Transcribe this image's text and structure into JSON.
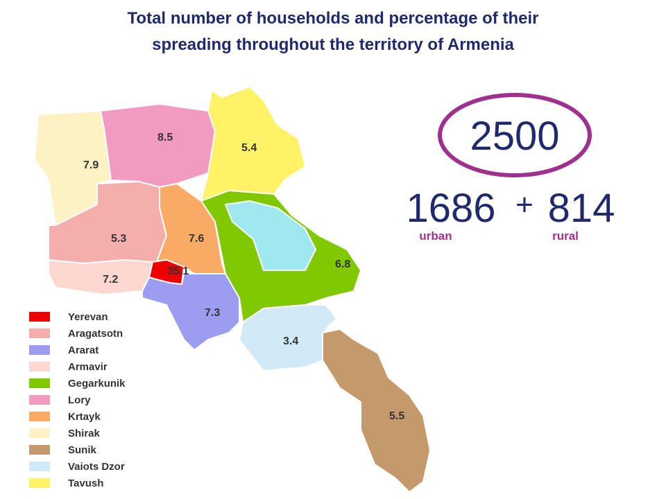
{
  "title": [
    "Total number of households and percentage of their",
    "spreading throughout the territory of Armenia"
  ],
  "regions": [
    {
      "value": 7.9,
      "color": "#fdf2c4"
    },
    {
      "value": 8.5,
      "color": "#f29ac0"
    },
    {
      "value": 5.4,
      "color": "#fff266"
    },
    {
      "value": 5.3,
      "color": "#f4aeac"
    },
    {
      "value": 7.6,
      "color": "#f9aa64"
    },
    {
      "value": 7.2,
      "color": "#fcd8d0"
    },
    {
      "value": 35.1,
      "color": "#ee0000"
    },
    {
      "value": 7.3,
      "color": "#9c9cf0"
    },
    {
      "value": 6.8,
      "color": "#80c800"
    },
    {
      "value": 3.4,
      "color": "#d2eaf8"
    },
    {
      "value": 5.5,
      "color": "#c49a6c"
    }
  ],
  "legend": [
    {
      "name": "Yerevan",
      "color": "#ee0000"
    },
    {
      "name": "Aragatsotn",
      "color": "#f4aeac"
    },
    {
      "name": "Ararat",
      "color": "#9c9cf0"
    },
    {
      "name": "Armavir",
      "color": "#fcd8d0"
    },
    {
      "name": "Gegarkunik",
      "color": "#80c800"
    },
    {
      "name": "Lory",
      "color": "#f29ac0"
    },
    {
      "name": "Krtayk",
      "color": "#f9aa64"
    },
    {
      "name": "Shirak",
      "color": "#fdf2c4"
    },
    {
      "name": "Sunik",
      "color": "#c49a6c"
    },
    {
      "name": "Vaiots Dzor",
      "color": "#d2eaf8"
    },
    {
      "name": "Tavush",
      "color": "#fff266"
    }
  ],
  "total": {
    "value": 2500,
    "urban": 1686,
    "plus": "+",
    "rural": 814,
    "urban_label": "urban",
    "rural_label": "rural"
  }
}
